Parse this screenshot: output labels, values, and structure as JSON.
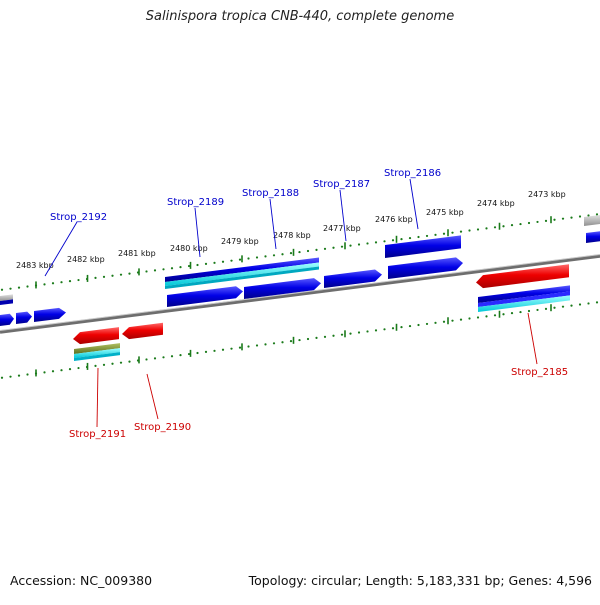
{
  "title": "Salinispora tropica CNB-440, complete genome",
  "footer": {
    "accession": "Accession: NC_009380",
    "summary": "Topology: circular; Length: 5,183,331 bp; Genes: 4,596"
  },
  "ticks": [
    "2483 kbp",
    "2482 kbp",
    "2481 kbp",
    "2480 kbp",
    "2479 kbp",
    "2478 kbp",
    "2477 kbp",
    "2476 kbp",
    "2475 kbp",
    "2474 kbp",
    "2473 kbp"
  ],
  "genes": {
    "top": [
      "Strop_2192",
      "Strop_2189",
      "Strop_2188",
      "Strop_2187",
      "Strop_2186"
    ],
    "bottom": [
      "Strop_2191",
      "Strop_2190",
      "Strop_2185"
    ]
  },
  "colors": {
    "forward_label": "#0000cc",
    "reverse_label": "#cc0000",
    "forward_feature": "#0000e0",
    "reverse_feature": "#ee0000",
    "tick": "#1a7a1a",
    "backbone": "#808080"
  }
}
